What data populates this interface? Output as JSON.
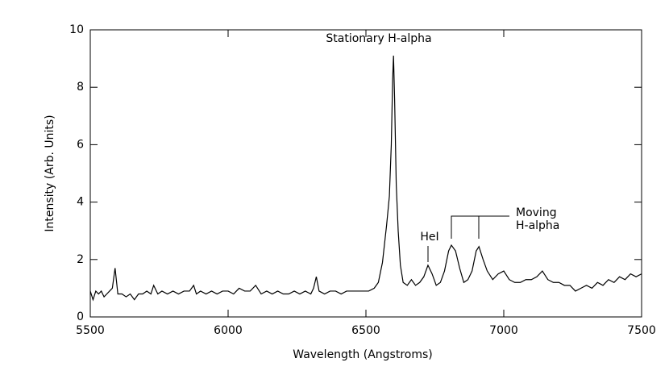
{
  "chart_data": {
    "type": "line",
    "xlabel": "Wavelength (Angstroms)",
    "ylabel": "Intensity (Arb. Units)",
    "annotations": [
      "Stationary H-alpha",
      "HeI",
      "Moving",
      "H-alpha"
    ],
    "color": "#000000",
    "xlim": [
      5500,
      7500
    ],
    "xticks": [
      5500,
      6000,
      6500,
      7000,
      7500
    ],
    "ylim": [
      0,
      10
    ],
    "yticks": [
      0,
      2,
      4,
      6,
      8,
      10
    ],
    "grid": false,
    "x": [
      5500,
      5510,
      5520,
      5530,
      5540,
      5550,
      5560,
      5570,
      5580,
      5590,
      5600,
      5615,
      5630,
      5645,
      5660,
      5675,
      5690,
      5705,
      5720,
      5730,
      5745,
      5760,
      5780,
      5800,
      5820,
      5840,
      5860,
      5875,
      5885,
      5900,
      5920,
      5940,
      5960,
      5980,
      6000,
      6020,
      6040,
      6060,
      6080,
      6100,
      6120,
      6140,
      6160,
      6180,
      6200,
      6220,
      6240,
      6260,
      6280,
      6300,
      6310,
      6320,
      6330,
      6350,
      6370,
      6390,
      6410,
      6430,
      6450,
      6470,
      6490,
      6510,
      6530,
      6545,
      6560,
      6575,
      6585,
      6592,
      6597,
      6600,
      6604,
      6610,
      6617,
      6625,
      6635,
      6650,
      6665,
      6680,
      6695,
      6710,
      6725,
      6740,
      6755,
      6770,
      6785,
      6800,
      6810,
      6825,
      6840,
      6855,
      6870,
      6885,
      6900,
      6910,
      6925,
      6940,
      6960,
      6980,
      7000,
      7020,
      7040,
      7060,
      7080,
      7100,
      7120,
      7140,
      7160,
      7180,
      7200,
      7220,
      7240,
      7260,
      7280,
      7300,
      7320,
      7340,
      7360,
      7380,
      7400,
      7420,
      7440,
      7460,
      7480,
      7500
    ],
    "values": [
      0.9,
      0.6,
      0.9,
      0.8,
      0.9,
      0.7,
      0.8,
      0.9,
      1.0,
      1.7,
      0.8,
      0.8,
      0.7,
      0.8,
      0.6,
      0.8,
      0.8,
      0.9,
      0.8,
      1.1,
      0.8,
      0.9,
      0.8,
      0.9,
      0.8,
      0.9,
      0.9,
      1.1,
      0.8,
      0.9,
      0.8,
      0.9,
      0.8,
      0.9,
      0.9,
      0.8,
      1.0,
      0.9,
      0.9,
      1.1,
      0.8,
      0.9,
      0.8,
      0.9,
      0.8,
      0.8,
      0.9,
      0.8,
      0.9,
      0.8,
      1.0,
      1.4,
      0.9,
      0.8,
      0.9,
      0.9,
      0.8,
      0.9,
      0.9,
      0.9,
      0.9,
      0.9,
      1.0,
      1.2,
      1.9,
      3.2,
      4.2,
      6.0,
      8.3,
      9.1,
      7.6,
      4.6,
      3.0,
      1.8,
      1.2,
      1.1,
      1.3,
      1.1,
      1.2,
      1.4,
      1.8,
      1.5,
      1.1,
      1.2,
      1.6,
      2.3,
      2.5,
      2.3,
      1.7,
      1.2,
      1.3,
      1.6,
      2.3,
      2.45,
      2.0,
      1.6,
      1.3,
      1.5,
      1.6,
      1.3,
      1.2,
      1.2,
      1.3,
      1.3,
      1.4,
      1.6,
      1.3,
      1.2,
      1.2,
      1.1,
      1.1,
      0.9,
      1.0,
      1.1,
      1.0,
      1.2,
      1.1,
      1.3,
      1.2,
      1.4,
      1.3,
      1.5,
      1.4,
      1.5
    ]
  }
}
